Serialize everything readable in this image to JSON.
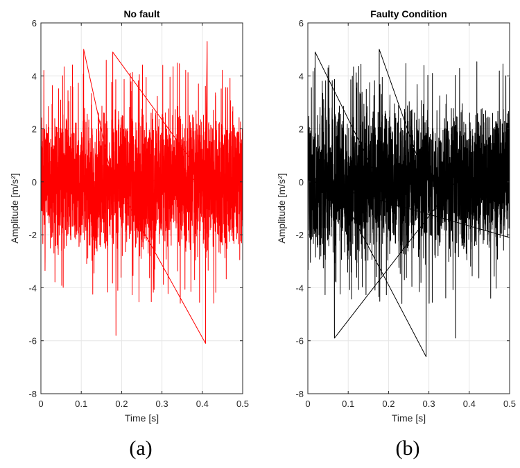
{
  "chart_data": [
    {
      "type": "line",
      "panel_label": "(a)",
      "title": "No fault",
      "xlabel": "Time [s]",
      "ylabel": "Amplitude [m/s²]",
      "xlim": [
        0,
        0.5
      ],
      "ylim": [
        -8,
        6
      ],
      "xticks": [
        0,
        0.1,
        0.2,
        0.3,
        0.4,
        0.5
      ],
      "xtick_labels": [
        "0",
        "0.1",
        "0.2",
        "0.3",
        "0.4",
        "0.5"
      ],
      "yticks": [
        -8,
        -6,
        -4,
        -2,
        0,
        2,
        4,
        6
      ],
      "ytick_labels": [
        "-8",
        "-6",
        "-4",
        "-2",
        "0",
        "2",
        "4",
        "6"
      ],
      "grid": true,
      "color": "#ff0000",
      "series": [
        {
          "description": "vibration signal, dense noise band roughly between -3 and +3",
          "approx_range": [
            -6.1,
            5.3
          ],
          "peaks": [
            {
              "x": 0.106,
              "y": 5.0
            },
            {
              "x": 0.178,
              "y": 4.9
            },
            {
              "x": 0.412,
              "y": 5.3
            },
            {
              "x": 0.408,
              "y": -6.1
            },
            {
              "x": 0.186,
              "y": -5.8
            }
          ],
          "seed": 7
        }
      ]
    },
    {
      "type": "line",
      "panel_label": "(b)",
      "title": "Faulty Condition",
      "xlabel": "Time [s]",
      "ylabel": "Amplitude [m/s²]",
      "xlim": [
        0,
        0.5
      ],
      "ylim": [
        -8,
        6
      ],
      "xticks": [
        0,
        0.1,
        0.2,
        0.3,
        0.4,
        0.5
      ],
      "xtick_labels": [
        "0",
        "0.1",
        "0.2",
        "0.3",
        "0.4",
        "0.5"
      ],
      "yticks": [
        -8,
        -6,
        -4,
        -2,
        0,
        2,
        4,
        6
      ],
      "ytick_labels": [
        "-8",
        "-6",
        "-4",
        "-2",
        "0",
        "2",
        "4",
        "6"
      ],
      "grid": true,
      "color": "#000000",
      "series": [
        {
          "description": "vibration signal with fault, dense noise band roughly between -3 and +3",
          "approx_range": [
            -6.6,
            5.0
          ],
          "peaks": [
            {
              "x": 0.018,
              "y": 4.9
            },
            {
              "x": 0.177,
              "y": 5.0
            },
            {
              "x": 0.293,
              "y": -6.6
            },
            {
              "x": 0.066,
              "y": -5.9
            },
            {
              "x": 0.366,
              "y": -5.9
            }
          ],
          "seed": 23
        }
      ]
    }
  ]
}
